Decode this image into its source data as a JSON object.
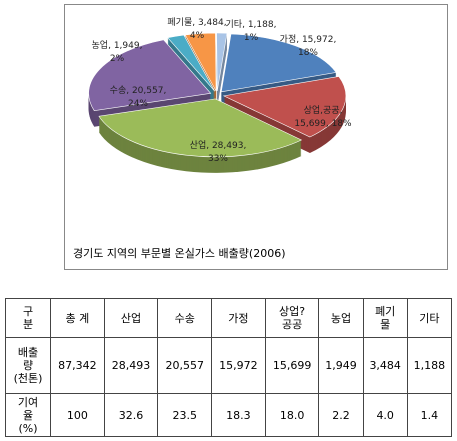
{
  "chart_data": {
    "type": "pie",
    "title": "경기도 지역의 부문별 온실가스 배출량(2006)",
    "categories": [
      "가정",
      "상업,공공",
      "산업",
      "수송",
      "농업",
      "폐기물",
      "기타"
    ],
    "values": [
      15972,
      15699,
      28493,
      20557,
      1949,
      3484,
      1188
    ],
    "value_labels": [
      [
        "가정, 15,972,",
        "18%"
      ],
      [
        "상업,공공,",
        "15,699, 18%"
      ],
      [
        "산업, 28,493,",
        "33%"
      ],
      [
        "수송, 20,557,",
        "24%"
      ],
      [
        "농업, 1,949,",
        "2%"
      ],
      [
        "폐기물, 3,484,",
        "4%"
      ],
      [
        "기타, 1,188,",
        "1%"
      ]
    ],
    "colors": [
      "#4f81bd",
      "#c0504d",
      "#9bbb59",
      "#8064a2",
      "#4bacc6",
      "#f79646",
      "#a9c4e6"
    ]
  },
  "table": {
    "header": [
      "구\n분",
      "총 계",
      "산업",
      "수송",
      "가정",
      "상업?\n공공",
      "농업",
      "폐기\n물",
      "기타"
    ],
    "rows": [
      [
        "배출\n량\n(천톤)",
        "87,342",
        "28,493",
        "20,557",
        "15,972",
        "15,699",
        "1,949",
        "3,484",
        "1,188"
      ],
      [
        "기여\n율\n(%)",
        "100",
        "32.6",
        "23.5",
        "18.3",
        "18.0",
        "2.2",
        "4.0",
        "1.4"
      ]
    ]
  }
}
